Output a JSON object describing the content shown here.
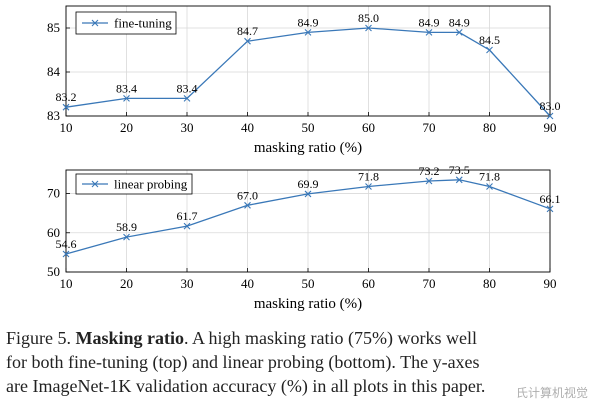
{
  "chart_data": [
    {
      "type": "line",
      "xlabel": "masking ratio (%)",
      "ylabel": "",
      "xlim": [
        10,
        90
      ],
      "ylim": [
        83,
        85.5
      ],
      "xticks": [
        "10",
        "20",
        "30",
        "40",
        "50",
        "60",
        "70",
        "80",
        "90"
      ],
      "yticks": [
        "83",
        "84",
        "85"
      ],
      "series": [
        {
          "name": "fine-tuning",
          "x": [
            10,
            20,
            30,
            40,
            50,
            60,
            70,
            75,
            80,
            90
          ],
          "y": [
            83.2,
            83.4,
            83.4,
            84.7,
            84.9,
            85.0,
            84.9,
            84.9,
            84.5,
            83.0
          ],
          "labels": [
            "83.2",
            "83.4",
            "83.4",
            "84.7",
            "84.9",
            "85.0",
            "84.9",
            "84.9",
            "84.5",
            "83.0"
          ],
          "color": "#3a78b8"
        }
      ],
      "legend": "top-left",
      "grid": true
    },
    {
      "type": "line",
      "xlabel": "masking ratio (%)",
      "ylabel": "",
      "xlim": [
        10,
        90
      ],
      "ylim": [
        50,
        76
      ],
      "xticks": [
        "10",
        "20",
        "30",
        "40",
        "50",
        "60",
        "70",
        "80",
        "90"
      ],
      "yticks": [
        "50",
        "60",
        "70"
      ],
      "series": [
        {
          "name": "linear probing",
          "x": [
            10,
            20,
            30,
            40,
            50,
            60,
            70,
            75,
            80,
            90
          ],
          "y": [
            54.6,
            58.9,
            61.7,
            67.0,
            69.9,
            71.8,
            73.2,
            73.5,
            71.8,
            66.1
          ],
          "labels": [
            "54.6",
            "58.9",
            "61.7",
            "67.0",
            "69.9",
            "71.8",
            "73.2",
            "73.5",
            "71.8",
            "66.1"
          ],
          "color": "#3a78b8"
        }
      ],
      "legend": "top-left",
      "grid": true
    }
  ],
  "caption": {
    "prefix": "Figure 5. ",
    "bold": "Masking ratio",
    "line1_rest": ". A high masking ratio (75%) works well",
    "line2": "for both fine-tuning (top) and linear probing (bottom). The y-axes",
    "line3": "are ImageNet-1K validation accuracy (%) in all plots in this paper."
  },
  "watermark": "氏计算机视觉"
}
